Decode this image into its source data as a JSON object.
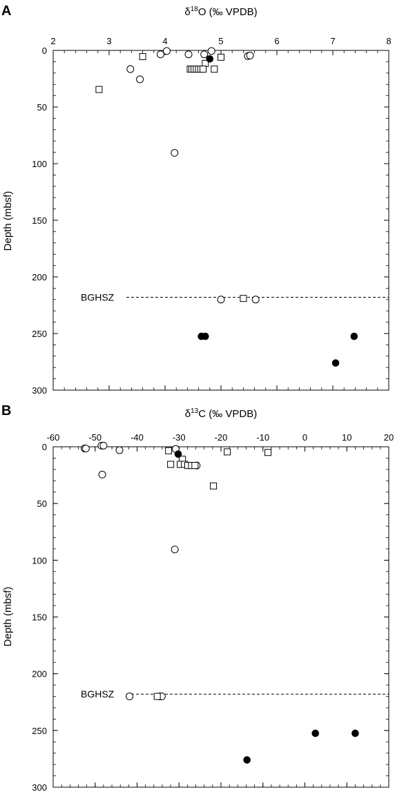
{
  "chart_data": [
    {
      "panel": "A",
      "type": "scatter",
      "title": "δ18O (‰ VPDB)",
      "title_parts": {
        "delta": "δ",
        "sup": "18",
        "rest": "O (‰ VPDB)"
      },
      "ylabel": "Depth (mbsf)",
      "xlim": [
        2,
        8
      ],
      "ylim": [
        300,
        0
      ],
      "x_ticks": [
        2,
        3,
        4,
        5,
        6,
        7,
        8
      ],
      "y_ticks": [
        0,
        50,
        100,
        150,
        200,
        250,
        300
      ],
      "x_axis_position": "top",
      "reference_line": {
        "y": 218,
        "label": "BGHSZ",
        "style": "dashed"
      },
      "series": [
        {
          "marker": "open-circle",
          "points": [
            [
              4.03,
              0.5
            ],
            [
              3.92,
              3.5
            ],
            [
              4.42,
              3.5
            ],
            [
              4.7,
              3.5
            ],
            [
              4.83,
              0.5
            ],
            [
              5.48,
              5
            ],
            [
              5.52,
              4.5
            ],
            [
              3.38,
              16.5
            ],
            [
              3.55,
              25.5
            ],
            [
              4.17,
              90.5
            ],
            [
              5.0,
              220
            ],
            [
              5.62,
              220
            ]
          ]
        },
        {
          "marker": "open-square",
          "points": [
            [
              3.6,
              5.5
            ],
            [
              5.0,
              6.0
            ],
            [
              4.72,
              11.5
            ],
            [
              4.45,
              16.5
            ],
            [
              4.48,
              16.5
            ],
            [
              4.52,
              16.5
            ],
            [
              4.56,
              16.5
            ],
            [
              4.6,
              16.5
            ],
            [
              4.64,
              16.5
            ],
            [
              4.68,
              16.5
            ],
            [
              4.88,
              16.5
            ],
            [
              2.82,
              34.5
            ],
            [
              5.4,
              219
            ]
          ]
        },
        {
          "marker": "filled-circle",
          "points": [
            [
              4.8,
              7.5
            ],
            [
              4.65,
              252.5
            ],
            [
              4.72,
              252.5
            ],
            [
              7.38,
              252.5
            ],
            [
              7.05,
              276
            ]
          ]
        }
      ]
    },
    {
      "panel": "B",
      "type": "scatter",
      "title": "δ13C (‰ VPDB)",
      "title_parts": {
        "delta": "δ",
        "sup": "13",
        "rest": "C (‰ VPDB)"
      },
      "ylabel": "Depth (mbsf)",
      "xlim": [
        -60,
        20
      ],
      "ylim": [
        300,
        0
      ],
      "x_ticks": [
        -60,
        -50,
        -40,
        -30,
        -20,
        -10,
        0,
        10,
        20
      ],
      "y_ticks": [
        0,
        50,
        100,
        150,
        200,
        250,
        300
      ],
      "x_axis_position": "top",
      "reference_line": {
        "y": 218,
        "label": "BGHSZ",
        "style": "dashed"
      },
      "series": [
        {
          "marker": "open-circle",
          "points": [
            [
              -52.5,
              1.5
            ],
            [
              -52.2,
              1.5
            ],
            [
              -48.5,
              -1
            ],
            [
              -48.0,
              -1
            ],
            [
              -44.2,
              3.0
            ],
            [
              -48.3,
              24.5
            ],
            [
              -30.8,
              2.0
            ],
            [
              -31.0,
              90.5
            ],
            [
              -41.8,
              220
            ],
            [
              -34.6,
              220
            ],
            [
              -34.1,
              220
            ],
            [
              -25.8,
              16.5
            ]
          ]
        },
        {
          "marker": "open-square",
          "points": [
            [
              -32.5,
              3.5
            ],
            [
              -32.0,
              15.5
            ],
            [
              -29.2,
              11.0
            ],
            [
              -29.7,
              15.5
            ],
            [
              -28.7,
              15.5
            ],
            [
              -27.9,
              16.5
            ],
            [
              -27.0,
              16.5
            ],
            [
              -26.2,
              16.5
            ],
            [
              -18.5,
              4.5
            ],
            [
              -8.8,
              5.0
            ],
            [
              -21.8,
              34.5
            ],
            [
              -35.2,
              220
            ]
          ]
        },
        {
          "marker": "filled-circle",
          "points": [
            [
              -30.2,
              6.5
            ],
            [
              2.5,
              252.5
            ],
            [
              12.0,
              252.5
            ],
            [
              -13.8,
              276
            ]
          ]
        }
      ]
    }
  ],
  "labels": {
    "panel_a": "A",
    "panel_b": "B"
  }
}
